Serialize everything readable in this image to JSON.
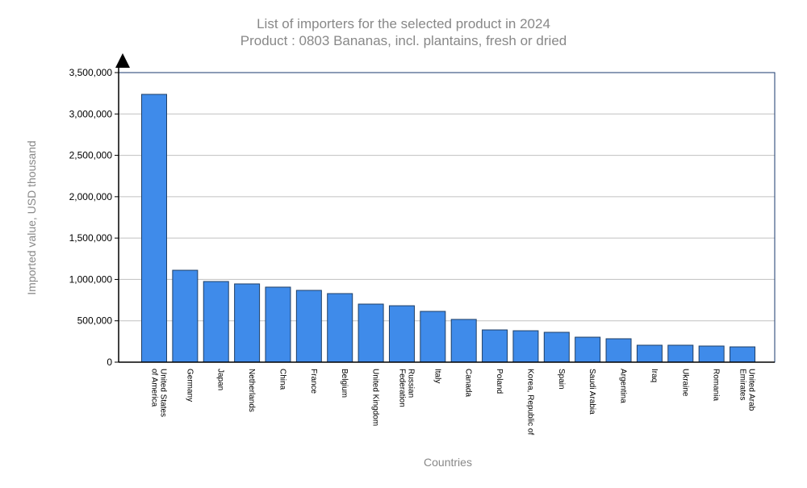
{
  "chart_data": {
    "type": "bar",
    "title": "List of importers for the selected product in 2024",
    "subtitle": "Product : 0803 Bananas, incl. plantains, fresh or dried",
    "xlabel": "Countries",
    "ylabel": "Imported value, USD thousand",
    "ylim": [
      0,
      3500000
    ],
    "yticks": [
      0,
      500000,
      1000000,
      1500000,
      2000000,
      2500000,
      3000000,
      3500000
    ],
    "ytick_labels": [
      "0",
      "500,000",
      "1,000,000",
      "1,500,000",
      "2,000,000",
      "2,500,000",
      "3,000,000",
      "3,500,000"
    ],
    "grid": true,
    "bar_color": "#3f8bea",
    "bar_edge_color": "#1f3f66",
    "categories": [
      [
        "United States",
        "of America"
      ],
      [
        "Germany"
      ],
      [
        "Japan"
      ],
      [
        "Netherlands"
      ],
      [
        "China"
      ],
      [
        "France"
      ],
      [
        "Belgium"
      ],
      [
        "United Kingdom"
      ],
      [
        "Russian",
        "Federation"
      ],
      [
        "Italy"
      ],
      [
        "Canada"
      ],
      [
        "Poland"
      ],
      [
        "Korea, Republic of"
      ],
      [
        "Spain"
      ],
      [
        "Saudi Arabia"
      ],
      [
        "Argentina"
      ],
      [
        "Iraq"
      ],
      [
        "Ukraine"
      ],
      [
        "Romania"
      ],
      [
        "United Arab",
        "Emirates"
      ]
    ],
    "values": [
      3237000,
      1111000,
      975000,
      946000,
      907000,
      868000,
      829000,
      702000,
      682000,
      614000,
      517000,
      390000,
      380000,
      361000,
      302000,
      283000,
      205000,
      205000,
      195000,
      185000
    ]
  }
}
